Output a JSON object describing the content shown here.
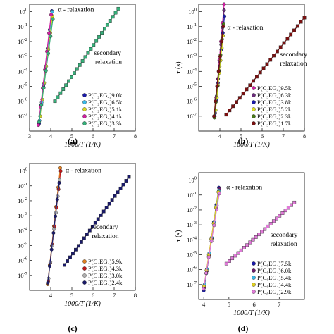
{
  "chart_data": [
    {
      "panel": "(a)",
      "type": "scatter",
      "xlabel": "1000/T (1/K)",
      "ylabel": "",
      "xlim": [
        3,
        8
      ],
      "ylim_log10": [
        -8,
        0.5
      ],
      "xticks": [
        "3",
        "4",
        "5",
        "6",
        "7",
        "8"
      ],
      "yticks": [
        "10^0",
        "10^-1",
        "10^-2",
        "10^-3",
        "10^-4",
        "10^-5",
        "10^-6",
        "10^-7"
      ],
      "annotations": [
        {
          "text": "α - relaxation",
          "x": 4.35,
          "logy": 0.0
        },
        {
          "text": "secondary",
          "x": 6.05,
          "logy": -2.9
        },
        {
          "text": "relaxation",
          "x": 6.1,
          "logy": -3.5
        }
      ],
      "legend_position": "bottom-right",
      "series": [
        {
          "name": "P(C₂EG₄)9.0k",
          "color": "#1a1aa8",
          "alpha": {
            "x0": 3.45,
            "y0": -7.5,
            "x1": 4.05,
            "y1": 0.05
          },
          "secondary": null
        },
        {
          "name": "P(C₂EG₄)6.5k",
          "color": "#39b8e8",
          "alpha": {
            "x0": 3.47,
            "y0": -7.3,
            "x1": 4.07,
            "y1": 0.0
          },
          "secondary": null
        },
        {
          "name": "P(C₂EG₄)5.1k",
          "color": "#d8d820",
          "alpha": {
            "x0": 3.5,
            "y0": -7.0,
            "x1": 4.08,
            "y1": -0.3
          },
          "secondary": null
        },
        {
          "name": "P(C₂EG₄)4.1k",
          "color": "#d01fa0",
          "alpha": {
            "x0": 3.42,
            "y0": -7.6,
            "x1": 4.02,
            "y1": -0.2
          },
          "secondary": null
        },
        {
          "name": "P(C₂EG₄)3.3k",
          "color": "#36b07a",
          "alpha": {
            "x0": 3.45,
            "y0": -7.4,
            "x1": 4.1,
            "y1": -0.5
          },
          "secondary": {
            "x0": 4.2,
            "y0": -6.0,
            "x1": 7.2,
            "y1": 0.2
          }
        }
      ]
    },
    {
      "panel": "(b)",
      "type": "scatter",
      "xlabel": "1000/T (1/K)",
      "ylabel": "τ (s)",
      "xlim": [
        3,
        8
      ],
      "ylim_log10": [
        -8,
        0.5
      ],
      "xticks": [
        "4",
        "5",
        "6",
        "7",
        "8"
      ],
      "yticks": [
        "10^0",
        "10^-1",
        "10^-2",
        "10^-3",
        "10^-4",
        "10^-5",
        "10^-6",
        "10^-7"
      ],
      "annotations": [
        {
          "text": "α - relaxation",
          "x": 4.35,
          "logy": -1.2
        },
        {
          "text": "secondary",
          "x": 6.85,
          "logy": -3.0
        },
        {
          "text": "relaxation",
          "x": 6.85,
          "logy": -3.6
        }
      ],
      "legend_position": "bottom-right",
      "series": [
        {
          "name": "P(C₃EG₄)9.5k",
          "color": "#d01fa0",
          "alpha": {
            "x0": 3.75,
            "y0": -7.0,
            "x1": 4.2,
            "y1": 0.5
          },
          "secondary": null
        },
        {
          "name": "P(C₃EG₄)6.3k",
          "color": "#6a2b7a",
          "alpha": {
            "x0": 3.78,
            "y0": -6.8,
            "x1": 4.2,
            "y1": 0.1
          },
          "secondary": null
        },
        {
          "name": "P(C₃EG₄)3.8k",
          "color": "#1a1aa8",
          "alpha": {
            "x0": 3.76,
            "y0": -7.0,
            "x1": 4.22,
            "y1": -0.3
          },
          "secondary": null
        },
        {
          "name": "P(C₃EG₄)5.2k",
          "color": "#e0e020",
          "alpha": {
            "x0": 3.8,
            "y0": -6.6,
            "x1": 4.15,
            "y1": -1.6
          },
          "secondary": null
        },
        {
          "name": "P(C₃EG₄)2.3k",
          "color": "#4a7a1a",
          "alpha": {
            "x0": 3.74,
            "y0": -7.1,
            "x1": 4.18,
            "y1": -0.8
          },
          "secondary": null
        },
        {
          "name": "P(C₃EG₄)1.7k",
          "color": "#7a1010",
          "alpha": {
            "x0": 3.72,
            "y0": -7.0,
            "x1": 4.16,
            "y1": -1.0
          },
          "secondary": {
            "x0": 4.3,
            "y0": -6.9,
            "x1": 8.0,
            "y1": -0.4
          }
        }
      ]
    },
    {
      "panel": "(c)",
      "type": "scatter",
      "xlabel": "1000/T (1/K)",
      "ylabel": "",
      "xlim": [
        3,
        8
      ],
      "ylim_log10": [
        -8,
        0.5
      ],
      "xticks": [
        "4",
        "5",
        "6",
        "7",
        "8"
      ],
      "yticks": [
        "10^0",
        "10^-1",
        "10^-2",
        "10^-3",
        "10^-4",
        "10^-5",
        "10^-6",
        "10^-7"
      ],
      "annotations": [
        {
          "text": "α - relaxation",
          "x": 4.7,
          "logy": -0.1
        },
        {
          "text": "secondary",
          "x": 5.9,
          "logy": -3.9
        },
        {
          "text": "relaxation",
          "x": 5.95,
          "logy": -4.5
        }
      ],
      "legend_position": "bottom-right",
      "series": [
        {
          "name": "P(C₄EG₄)5.9k",
          "color": "#e08020",
          "alpha": {
            "x0": 3.85,
            "y0": -7.6,
            "x1": 4.45,
            "y1": 0.2
          },
          "secondary": null
        },
        {
          "name": "P(C₄EG₄)4.3k",
          "color": "#c01818",
          "alpha": {
            "x0": 3.88,
            "y0": -7.4,
            "x1": 4.47,
            "y1": 0.0
          },
          "secondary": null
        },
        {
          "name": "P(C₄EG₄)3.0k",
          "color": "#b0b0b0",
          "alpha": {
            "x0": 3.9,
            "y0": -7.2,
            "x1": 4.42,
            "y1": -0.6
          },
          "secondary": null
        },
        {
          "name": "P(C₄EG₄)2.4k",
          "color": "#1a1a6a",
          "alpha": {
            "x0": 3.86,
            "y0": -7.5,
            "x1": 4.4,
            "y1": -0.8
          },
          "secondary": {
            "x0": 4.65,
            "y0": -6.3,
            "x1": 7.7,
            "y1": -0.4
          }
        }
      ]
    },
    {
      "panel": "(d)",
      "type": "scatter",
      "xlabel": "1000/T (1/K)",
      "ylabel": "τ (s)",
      "xlim": [
        3.8,
        8
      ],
      "ylim_log10": [
        -8,
        0.5
      ],
      "xticks": [
        "4",
        "5",
        "6",
        "7"
      ],
      "yticks": [
        "10^0",
        "10^-1",
        "10^-2",
        "10^-3",
        "10^-4",
        "10^-5",
        "10^-6",
        "10^-7"
      ],
      "annotations": [
        {
          "text": "α - relaxation",
          "x": 4.9,
          "logy": -0.6
        },
        {
          "text": "secondary",
          "x": 6.65,
          "logy": -3.8
        },
        {
          "text": "relaxation",
          "x": 6.65,
          "logy": -4.4
        }
      ],
      "legend_position": "bottom-right",
      "series": [
        {
          "name": "P(C₆EG₄)7.5k",
          "color": "#1a1aa8",
          "alpha": {
            "x0": 4.0,
            "y0": -7.4,
            "x1": 4.6,
            "y1": -0.5
          },
          "secondary": null
        },
        {
          "name": "P(C₆EG₄)6.0k",
          "color": "#6a1a6a",
          "alpha": {
            "x0": 4.02,
            "y0": -7.2,
            "x1": 4.62,
            "y1": -0.6
          },
          "secondary": null
        },
        {
          "name": "P(C₆EG₄)5.4k",
          "color": "#39b8e8",
          "alpha": {
            "x0": 4.03,
            "y0": -7.0,
            "x1": 4.6,
            "y1": -0.7
          },
          "secondary": null
        },
        {
          "name": "P(C₆EG₄)4.4k",
          "color": "#e0d020",
          "alpha": {
            "x0": 4.01,
            "y0": -7.1,
            "x1": 4.58,
            "y1": -0.8
          },
          "secondary": null
        },
        {
          "name": "P(C₆EG₄)2.9k",
          "color": "#e07ad8",
          "alpha": {
            "x0": 3.99,
            "y0": -7.3,
            "x1": 4.62,
            "y1": -0.9
          },
          "secondary": {
            "x0": 4.9,
            "y0": -5.6,
            "x1": 7.6,
            "y1": -1.5
          }
        }
      ]
    }
  ]
}
